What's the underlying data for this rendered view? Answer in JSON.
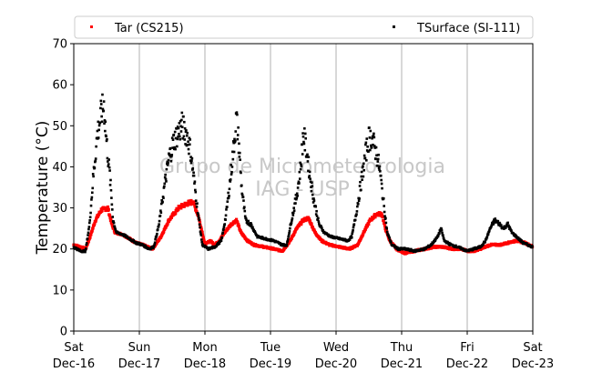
{
  "chart_data": {
    "type": "scatter",
    "ylabel": "Temperature (°C)",
    "xlabel": "",
    "ylim": [
      0,
      70
    ],
    "yticks": [
      0,
      10,
      20,
      30,
      40,
      50,
      60,
      70
    ],
    "xlim_days": [
      0,
      7
    ],
    "xticks": [
      {
        "day": 0,
        "line1": "Sat",
        "line2": "Dec-16"
      },
      {
        "day": 1,
        "line1": "Sun",
        "line2": "Dec-17"
      },
      {
        "day": 2,
        "line1": "Mon",
        "line2": "Dec-18"
      },
      {
        "day": 3,
        "line1": "Tue",
        "line2": "Dec-19"
      },
      {
        "day": 4,
        "line1": "Wed",
        "line2": "Dec-20"
      },
      {
        "day": 5,
        "line1": "Thu",
        "line2": "Dec-21"
      },
      {
        "day": 6,
        "line1": "Fri",
        "line2": "Dec-22"
      },
      {
        "day": 7,
        "line1": "Sat",
        "line2": "Dec-23"
      }
    ],
    "grid": "vertical",
    "legend_position": "top",
    "watermark": [
      "Grupo de Micrometeorologia",
      "IAG - USP"
    ],
    "series": [
      {
        "name": "Tar (CS215)",
        "color": "#ff0000",
        "points": [
          [
            0.0,
            21.0
          ],
          [
            0.1,
            20.5
          ],
          [
            0.18,
            20.0
          ],
          [
            0.25,
            23.0
          ],
          [
            0.33,
            27.0
          ],
          [
            0.42,
            29.5
          ],
          [
            0.52,
            30.0
          ],
          [
            0.58,
            26.0
          ],
          [
            0.63,
            24.0
          ],
          [
            0.75,
            23.5
          ],
          [
            0.85,
            22.5
          ],
          [
            0.95,
            21.5
          ],
          [
            1.05,
            21.0
          ],
          [
            1.2,
            20.0
          ],
          [
            1.33,
            23.0
          ],
          [
            1.45,
            27.0
          ],
          [
            1.6,
            30.0
          ],
          [
            1.72,
            31.0
          ],
          [
            1.82,
            31.5
          ],
          [
            1.9,
            28.0
          ],
          [
            1.96,
            24.0
          ],
          [
            2.0,
            21.0
          ],
          [
            2.08,
            22.0
          ],
          [
            2.15,
            21.0
          ],
          [
            2.22,
            22.0
          ],
          [
            2.3,
            24.0
          ],
          [
            2.4,
            26.0
          ],
          [
            2.48,
            27.0
          ],
          [
            2.55,
            24.0
          ],
          [
            2.65,
            22.0
          ],
          [
            2.75,
            21.0
          ],
          [
            2.9,
            20.5
          ],
          [
            3.05,
            20.0
          ],
          [
            3.18,
            19.5
          ],
          [
            3.3,
            22.0
          ],
          [
            3.4,
            25.0
          ],
          [
            3.5,
            27.0
          ],
          [
            3.58,
            27.5
          ],
          [
            3.68,
            24.0
          ],
          [
            3.78,
            22.0
          ],
          [
            3.9,
            21.0
          ],
          [
            4.05,
            20.5
          ],
          [
            4.2,
            20.0
          ],
          [
            4.33,
            21.0
          ],
          [
            4.42,
            24.0
          ],
          [
            4.52,
            27.0
          ],
          [
            4.62,
            28.5
          ],
          [
            4.7,
            28.5
          ],
          [
            4.75,
            25.0
          ],
          [
            4.82,
            22.0
          ],
          [
            4.92,
            20.0
          ],
          [
            5.05,
            19.0
          ],
          [
            5.2,
            19.5
          ],
          [
            5.35,
            20.0
          ],
          [
            5.5,
            20.5
          ],
          [
            5.62,
            20.5
          ],
          [
            5.78,
            20.0
          ],
          [
            5.9,
            20.0
          ],
          [
            6.0,
            19.5
          ],
          [
            6.1,
            19.5
          ],
          [
            6.2,
            20.0
          ],
          [
            6.35,
            21.0
          ],
          [
            6.5,
            21.0
          ],
          [
            6.62,
            21.5
          ],
          [
            6.75,
            22.0
          ],
          [
            6.88,
            21.5
          ],
          [
            7.0,
            20.5
          ]
        ]
      },
      {
        "name": "TSurface (SI-111)",
        "color": "#000000",
        "points": [
          [
            0.0,
            20.5
          ],
          [
            0.1,
            19.5
          ],
          [
            0.18,
            19.5
          ],
          [
            0.24,
            26.0
          ],
          [
            0.3,
            38.0
          ],
          [
            0.36,
            48.0
          ],
          [
            0.42,
            53.0
          ],
          [
            0.46,
            55.0
          ],
          [
            0.5,
            46.0
          ],
          [
            0.55,
            38.0
          ],
          [
            0.6,
            27.0
          ],
          [
            0.65,
            24.0
          ],
          [
            0.75,
            23.5
          ],
          [
            0.85,
            22.5
          ],
          [
            0.95,
            21.5
          ],
          [
            1.05,
            21.0
          ],
          [
            1.15,
            20.0
          ],
          [
            1.22,
            20.5
          ],
          [
            1.3,
            26.0
          ],
          [
            1.38,
            35.0
          ],
          [
            1.45,
            42.0
          ],
          [
            1.52,
            46.0
          ],
          [
            1.58,
            48.0
          ],
          [
            1.65,
            50.0
          ],
          [
            1.72,
            48.0
          ],
          [
            1.78,
            44.0
          ],
          [
            1.84,
            36.0
          ],
          [
            1.9,
            28.0
          ],
          [
            1.96,
            21.0
          ],
          [
            2.05,
            20.0
          ],
          [
            2.15,
            20.5
          ],
          [
            2.25,
            22.0
          ],
          [
            2.32,
            28.0
          ],
          [
            2.38,
            36.0
          ],
          [
            2.44,
            45.0
          ],
          [
            2.48,
            52.0
          ],
          [
            2.52,
            45.0
          ],
          [
            2.56,
            35.0
          ],
          [
            2.62,
            27.0
          ],
          [
            2.7,
            26.0
          ],
          [
            2.8,
            23.0
          ],
          [
            2.92,
            22.5
          ],
          [
            3.05,
            22.0
          ],
          [
            3.18,
            21.0
          ],
          [
            3.25,
            21.0
          ],
          [
            3.32,
            27.0
          ],
          [
            3.4,
            33.0
          ],
          [
            3.46,
            40.0
          ],
          [
            3.5,
            48.0
          ],
          [
            3.55,
            44.0
          ],
          [
            3.6,
            38.0
          ],
          [
            3.66,
            32.0
          ],
          [
            3.74,
            26.0
          ],
          [
            3.82,
            24.0
          ],
          [
            3.92,
            23.0
          ],
          [
            4.05,
            22.5
          ],
          [
            4.18,
            22.0
          ],
          [
            4.24,
            23.0
          ],
          [
            4.3,
            28.0
          ],
          [
            4.38,
            36.0
          ],
          [
            4.45,
            43.0
          ],
          [
            4.5,
            47.0
          ],
          [
            4.55,
            47.0
          ],
          [
            4.6,
            44.0
          ],
          [
            4.66,
            40.0
          ],
          [
            4.72,
            32.0
          ],
          [
            4.78,
            24.0
          ],
          [
            4.85,
            21.0
          ],
          [
            4.95,
            20.0
          ],
          [
            5.05,
            20.0
          ],
          [
            5.2,
            19.5
          ],
          [
            5.35,
            20.0
          ],
          [
            5.45,
            21.0
          ],
          [
            5.55,
            23.0
          ],
          [
            5.6,
            25.0
          ],
          [
            5.65,
            22.0
          ],
          [
            5.75,
            21.0
          ],
          [
            5.85,
            20.5
          ],
          [
            6.0,
            19.5
          ],
          [
            6.1,
            20.0
          ],
          [
            6.2,
            20.5
          ],
          [
            6.28,
            22.0
          ],
          [
            6.35,
            25.0
          ],
          [
            6.42,
            27.0
          ],
          [
            6.5,
            26.0
          ],
          [
            6.55,
            25.0
          ],
          [
            6.62,
            26.0
          ],
          [
            6.68,
            24.0
          ],
          [
            6.75,
            23.0
          ],
          [
            6.85,
            21.5
          ],
          [
            7.0,
            20.5
          ]
        ]
      }
    ]
  }
}
